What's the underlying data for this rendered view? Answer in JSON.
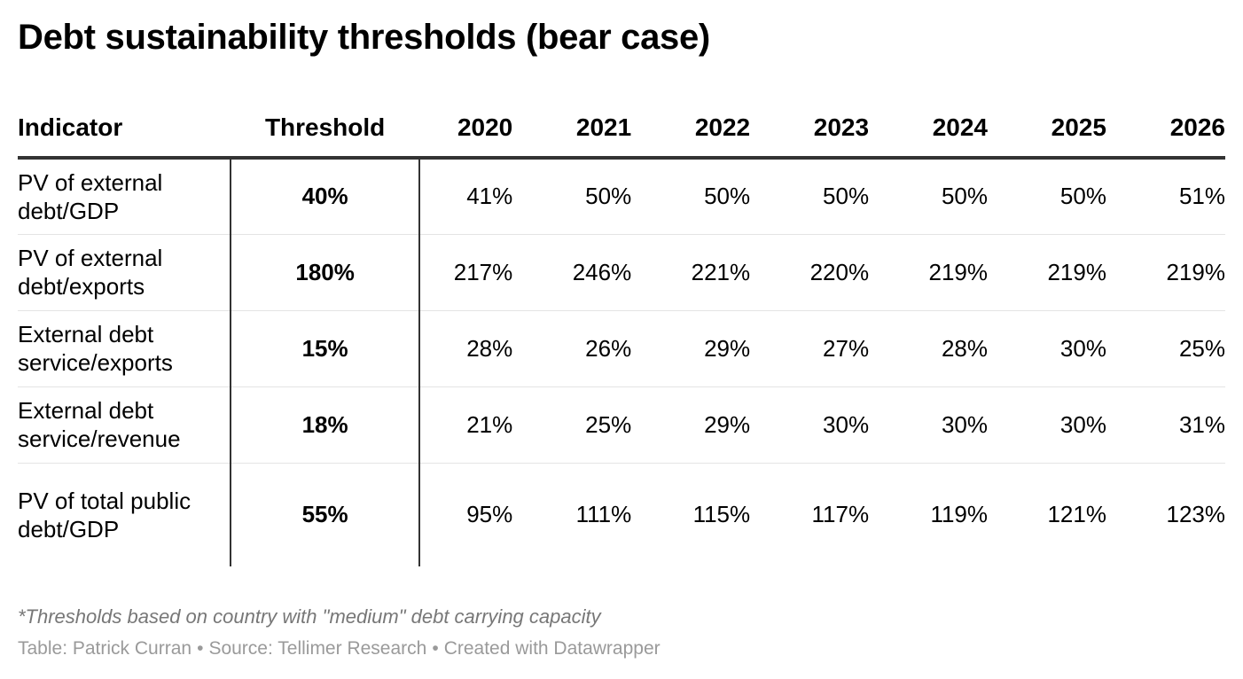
{
  "title": "Debt sustainability thresholds (bear case)",
  "chart_data": {
    "type": "table",
    "title": "Debt sustainability thresholds (bear case)",
    "columns": [
      "Indicator",
      "Threshold",
      "2020",
      "2021",
      "2022",
      "2023",
      "2024",
      "2025",
      "2026"
    ],
    "rows": [
      {
        "indicator": "PV of external debt/GDP",
        "threshold": "40%",
        "values": [
          "41%",
          "50%",
          "50%",
          "50%",
          "50%",
          "50%",
          "51%"
        ]
      },
      {
        "indicator": "PV of external debt/exports",
        "threshold": "180%",
        "values": [
          "217%",
          "246%",
          "221%",
          "220%",
          "219%",
          "219%",
          "219%"
        ]
      },
      {
        "indicator": "External debt service/exports",
        "threshold": "15%",
        "values": [
          "28%",
          "26%",
          "29%",
          "27%",
          "28%",
          "30%",
          "25%"
        ]
      },
      {
        "indicator": "External debt service/revenue",
        "threshold": "18%",
        "values": [
          "21%",
          "25%",
          "29%",
          "30%",
          "30%",
          "30%",
          "31%"
        ]
      },
      {
        "indicator": "PV of total public debt/GDP",
        "threshold": "55%",
        "values": [
          "95%",
          "111%",
          "115%",
          "117%",
          "119%",
          "121%",
          "123%"
        ]
      }
    ]
  },
  "footnote": "*Thresholds based on country with \"medium\" debt carrying capacity",
  "credits": {
    "table_by": "Table: Patrick Curran",
    "source": "Source: Tellimer Research",
    "created_with": "Created with Datawrapper",
    "separator": "•"
  },
  "colors": {
    "text": "#000000",
    "rule": "#333333",
    "row_divider": "#e4e4e4",
    "footnote": "#777777",
    "credits": "#9a9a9a"
  }
}
